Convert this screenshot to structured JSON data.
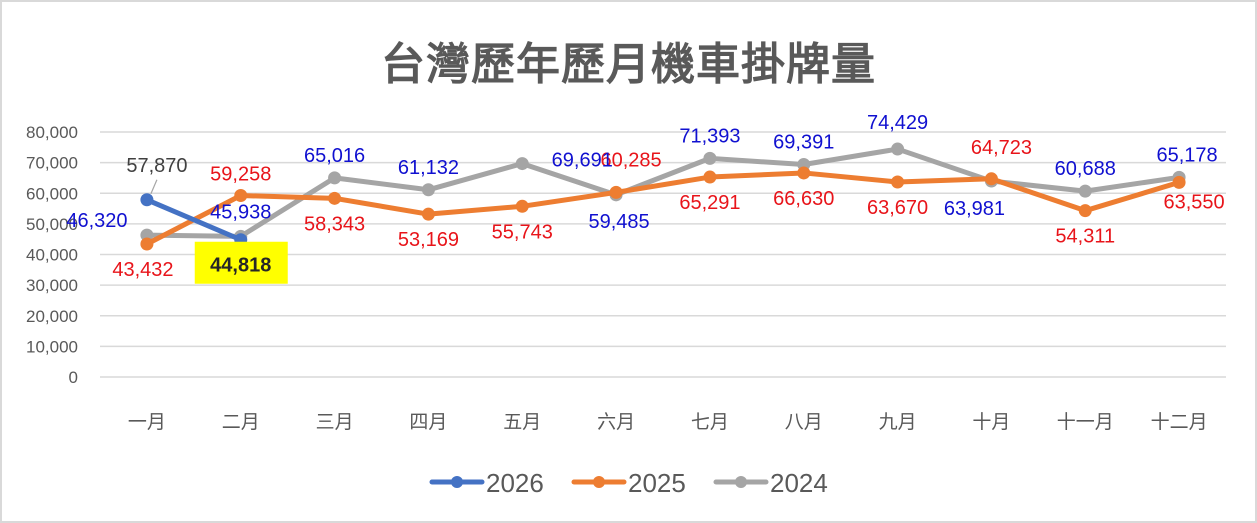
{
  "title": "台灣歷年歷月機車掛牌量",
  "chart_data": {
    "type": "line",
    "title": "台灣歷年歷月機車掛牌量",
    "xlabel": "",
    "ylabel": "",
    "ylim": [
      0,
      80000
    ],
    "yticks": [
      "0",
      "10,000",
      "20,000",
      "30,000",
      "40,000",
      "50,000",
      "60,000",
      "70,000",
      "80,000"
    ],
    "grid": true,
    "legend_position": "bottom",
    "categories": [
      "一月",
      "二月",
      "三月",
      "四月",
      "五月",
      "六月",
      "七月",
      "八月",
      "九月",
      "十月",
      "十一月",
      "十二月"
    ],
    "series": [
      {
        "name": "2026",
        "color": "#4472c4",
        "values": [
          57870,
          44818,
          null,
          null,
          null,
          null,
          null,
          null,
          null,
          null,
          null,
          null
        ]
      },
      {
        "name": "2025",
        "color": "#ed7d31",
        "values": [
          43432,
          59258,
          58343,
          53169,
          55743,
          60285,
          65291,
          66630,
          63670,
          64723,
          54311,
          63550
        ]
      },
      {
        "name": "2024",
        "color": "#a5a5a5",
        "values": [
          46320,
          45938,
          65016,
          61132,
          69691,
          59485,
          71393,
          69391,
          74429,
          63981,
          60688,
          65178
        ]
      }
    ],
    "data_labels": {
      "2026": [
        "57,870",
        "44,818"
      ],
      "2025": [
        "43,432",
        "59,258",
        "58,343",
        "53,169",
        "55,743",
        "60,285",
        "65,291",
        "66,630",
        "63,670",
        "64,723",
        "54,311",
        "63,550"
      ],
      "2024": [
        "46,320",
        "45,938",
        "65,016",
        "61,132",
        "69,691",
        "59,485",
        "71,393",
        "69,391",
        "74,429",
        "63,981",
        "60,688",
        "65,178"
      ]
    },
    "label_colors": {
      "2026": "#404040",
      "2026_highlight_bg": "#ffff00",
      "2025": "#e8141a",
      "2024": "#1010d0"
    }
  },
  "legend": {
    "items": [
      {
        "label": "2026",
        "color": "#4472c4"
      },
      {
        "label": "2025",
        "color": "#ed7d31"
      },
      {
        "label": "2024",
        "color": "#a5a5a5"
      }
    ]
  }
}
